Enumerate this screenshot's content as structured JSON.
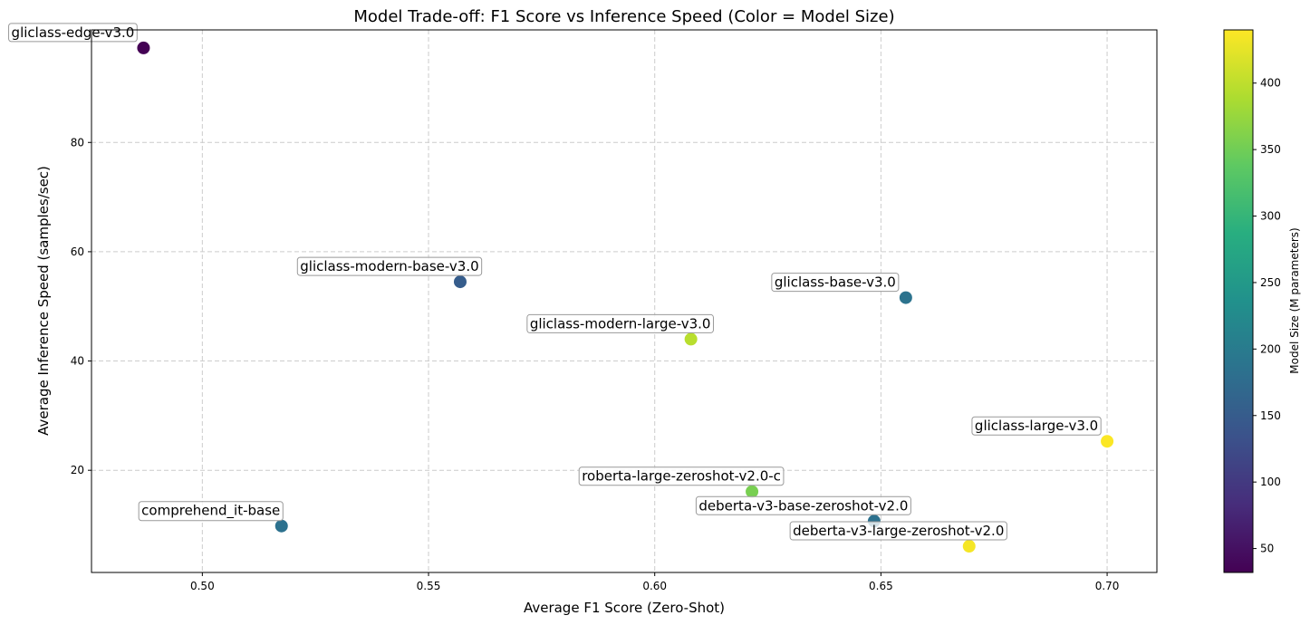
{
  "chart_data": {
    "type": "scatter",
    "title": "Model Trade-off: F1 Score vs Inference Speed (Color = Model Size)",
    "xlabel": "Average F1 Score (Zero-Shot)",
    "ylabel": "Average Inference Speed (samples/sec)",
    "xlim": [
      0.4755,
      0.711
    ],
    "ylim": [
      1.3,
      100.6
    ],
    "xticks": [
      0.5,
      0.55,
      0.6,
      0.65,
      0.7
    ],
    "xtick_labels": [
      "0.50",
      "0.55",
      "0.60",
      "0.65",
      "0.70"
    ],
    "yticks": [
      20,
      40,
      60,
      80
    ],
    "ytick_labels": [
      "20",
      "40",
      "60",
      "80"
    ],
    "grid": true,
    "colorbar": {
      "label": "Model Size (M parameters)",
      "range": [
        32,
        440
      ],
      "ticks": [
        50,
        100,
        150,
        200,
        250,
        300,
        350,
        400
      ],
      "tick_labels": [
        "50",
        "100",
        "150",
        "200",
        "250",
        "300",
        "350",
        "400"
      ],
      "colormap": "viridis"
    },
    "points": [
      {
        "label": "gliclass-edge-v3.0",
        "x": 0.487,
        "y": 97.3,
        "size": 32
      },
      {
        "label": "gliclass-modern-base-v3.0",
        "x": 0.557,
        "y": 54.5,
        "size": 151
      },
      {
        "label": "gliclass-modern-large-v3.0",
        "x": 0.608,
        "y": 44.0,
        "size": 396
      },
      {
        "label": "gliclass-base-v3.0",
        "x": 0.6555,
        "y": 51.6,
        "size": 186
      },
      {
        "label": "gliclass-large-v3.0",
        "x": 0.7,
        "y": 25.3,
        "size": 439
      },
      {
        "label": "roberta-large-zeroshot-v2.0-c",
        "x": 0.6215,
        "y": 16.1,
        "size": 355
      },
      {
        "label": "deberta-v3-base-zeroshot-v2.0",
        "x": 0.6485,
        "y": 10.7,
        "size": 184
      },
      {
        "label": "deberta-v3-large-zeroshot-v2.0",
        "x": 0.6695,
        "y": 6.1,
        "size": 435
      },
      {
        "label": "comprehend_it-base",
        "x": 0.5175,
        "y": 9.8,
        "size": 184
      }
    ]
  }
}
